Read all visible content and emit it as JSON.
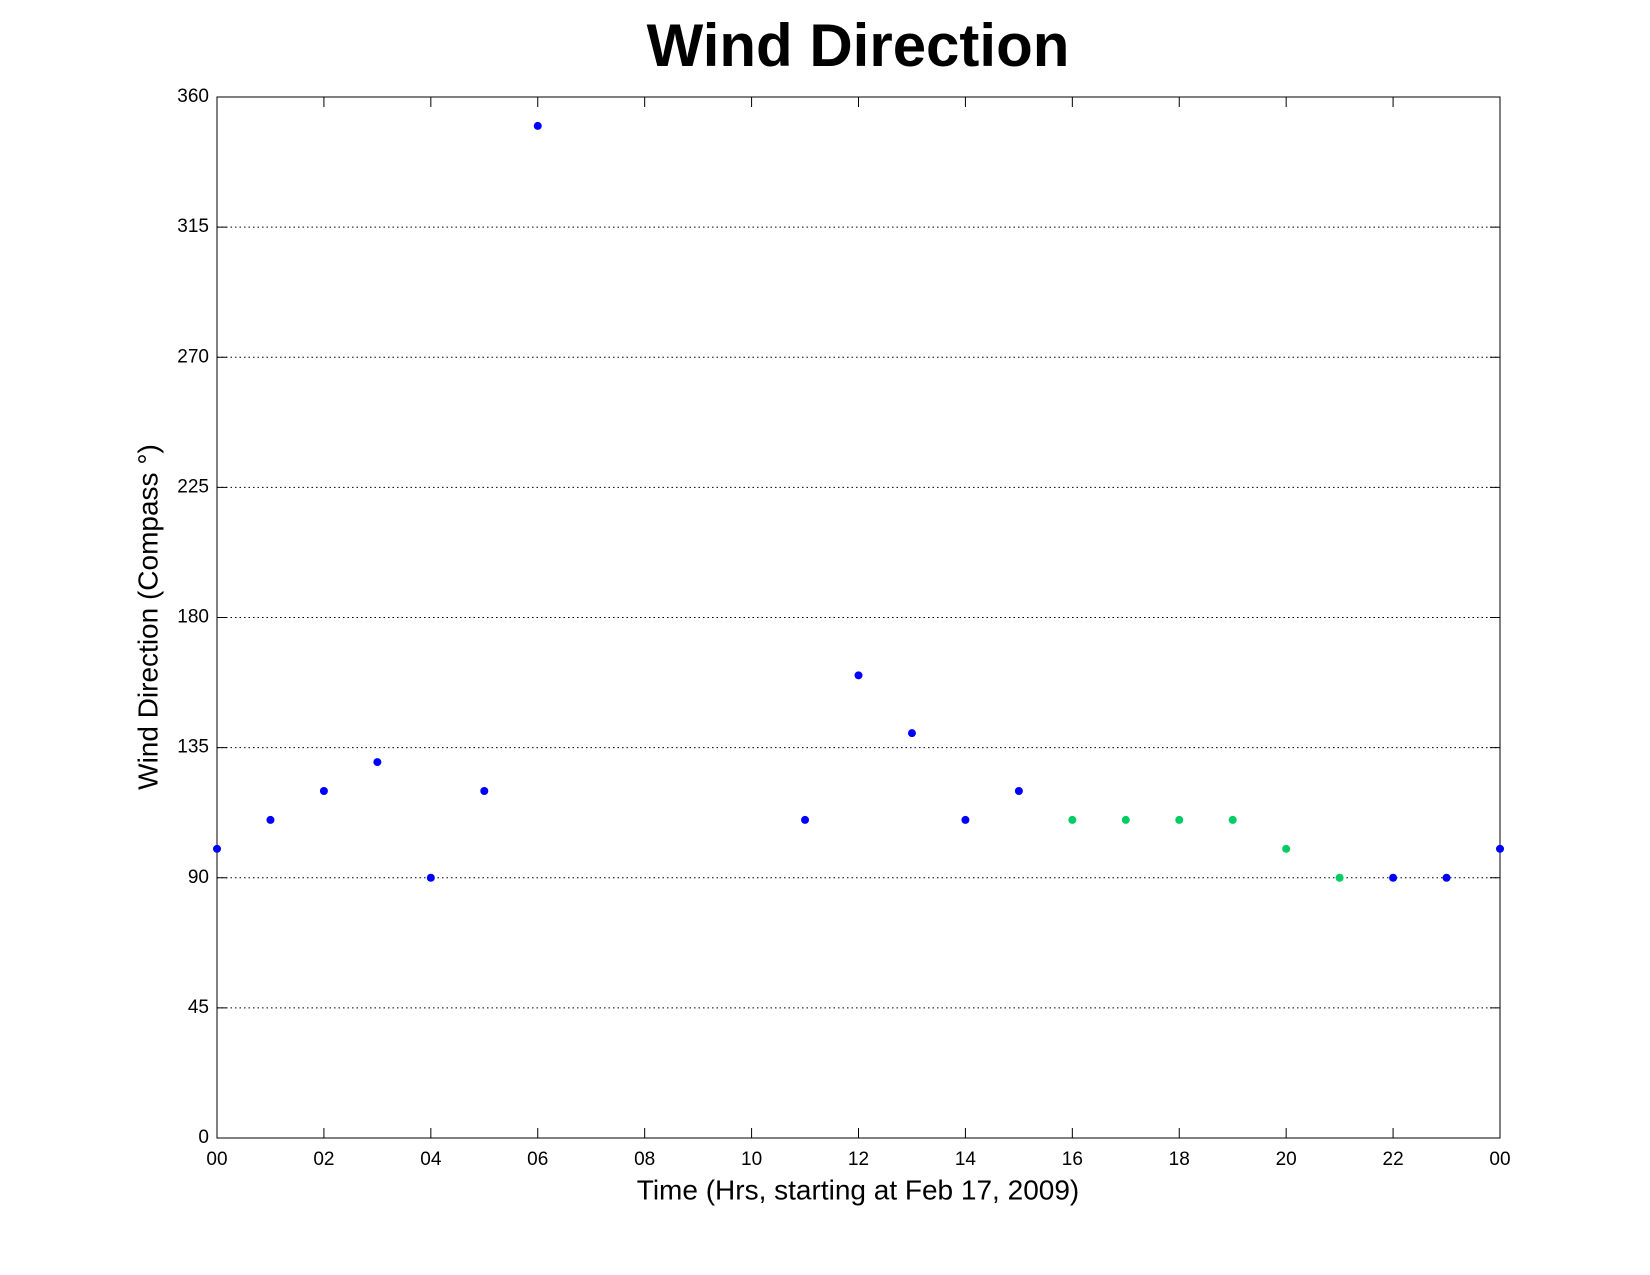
{
  "chart_data": {
    "type": "scatter",
    "title": "Wind Direction",
    "xlabel": "Time (Hrs, starting at Feb 17, 2009)",
    "ylabel": "Wind Direction (Compass °)",
    "xlim": [
      0,
      24
    ],
    "ylim": [
      0,
      360
    ],
    "xticks": [
      {
        "value": 0,
        "label": "00"
      },
      {
        "value": 2,
        "label": "02"
      },
      {
        "value": 4,
        "label": "04"
      },
      {
        "value": 6,
        "label": "06"
      },
      {
        "value": 8,
        "label": "08"
      },
      10,
      12,
      14,
      16,
      18,
      20,
      22,
      {
        "value": 24,
        "label": "00"
      }
    ],
    "yticks": [
      0,
      45,
      90,
      135,
      180,
      225,
      270,
      315,
      360
    ],
    "grid": true,
    "series": [
      {
        "color": "#0000ff",
        "x": [
          0,
          1,
          2,
          3,
          4,
          5,
          6,
          11,
          12,
          13,
          14,
          15,
          22,
          23,
          24
        ],
        "values": [
          100,
          110,
          120,
          130,
          90,
          120,
          350,
          110,
          160,
          140,
          110,
          120,
          90,
          90,
          100
        ]
      },
      {
        "color": "#00cc66",
        "x": [
          16,
          17,
          18,
          19,
          20,
          21
        ],
        "values": [
          110,
          110,
          110,
          110,
          100,
          90
        ]
      }
    ]
  }
}
